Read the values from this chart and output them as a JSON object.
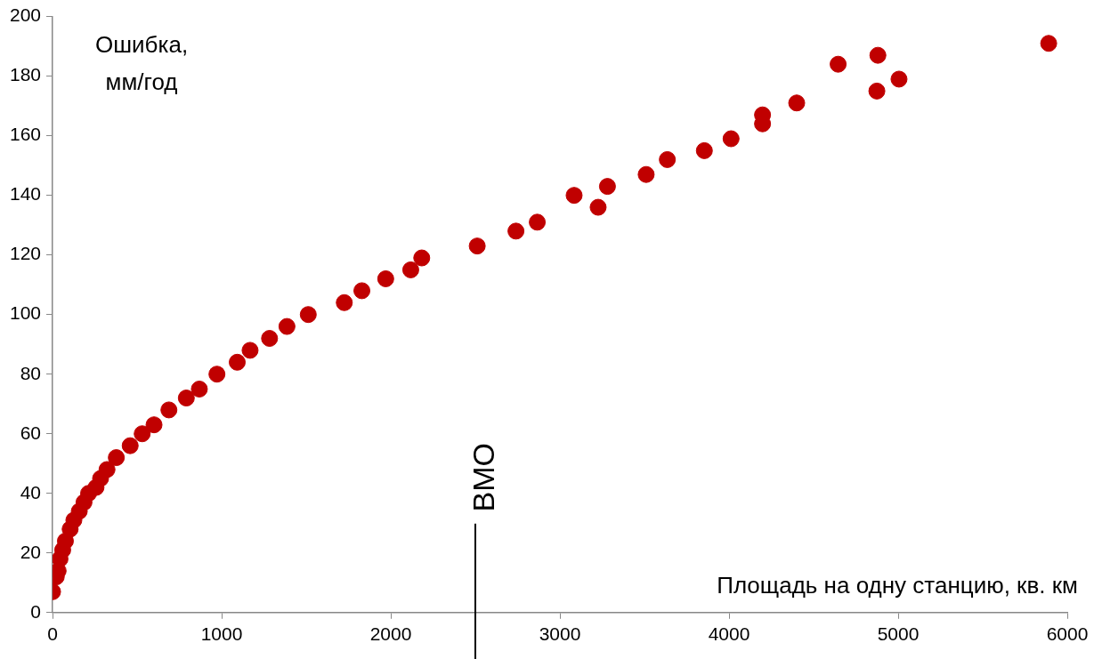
{
  "chart_data": {
    "type": "scatter",
    "xlabel": "Площадь на одну станцию, кв. км",
    "ylabel": "Ошибка, мм/год",
    "marker": "circle",
    "legend": false,
    "series": [
      {
        "color": "#c00000",
        "x": [
          0,
          22,
          33,
          44,
          60,
          76,
          104,
          126,
          158,
          186,
          213,
          257,
          284,
          322,
          377,
          459,
          530,
          600,
          688,
          791,
          868,
          972,
          1092,
          1168,
          1283,
          1386,
          1512,
          1725,
          1829,
          1970,
          2118,
          2183,
          2511,
          2740,
          2866,
          3084,
          3226,
          3281,
          3510,
          3635,
          3854,
          4012,
          4198,
          4198,
          4400,
          4645,
          4874,
          4880,
          5005,
          5890
        ],
        "values": [
          7,
          12,
          14,
          18,
          21,
          24,
          28,
          31,
          34,
          37,
          40,
          42,
          45,
          48,
          52,
          56,
          60,
          63,
          68,
          72,
          75,
          80,
          84,
          88,
          92,
          96,
          100,
          104,
          108,
          112,
          115,
          119,
          123,
          128,
          131,
          140,
          136,
          143,
          147,
          152,
          155,
          159,
          164,
          167,
          171,
          184,
          175,
          187,
          179,
          191
        ]
      }
    ],
    "xlim": [
      0,
      6000
    ],
    "xticks": [
      0,
      1000,
      2000,
      3000,
      4000,
      5000,
      6000
    ],
    "ylim": [
      0,
      200
    ],
    "yticks": [
      0,
      20,
      40,
      60,
      80,
      100,
      120,
      140,
      160,
      180,
      200
    ],
    "ref_lines": [
      {
        "axis": "x",
        "value": 2500,
        "label": "ВМО"
      }
    ]
  }
}
